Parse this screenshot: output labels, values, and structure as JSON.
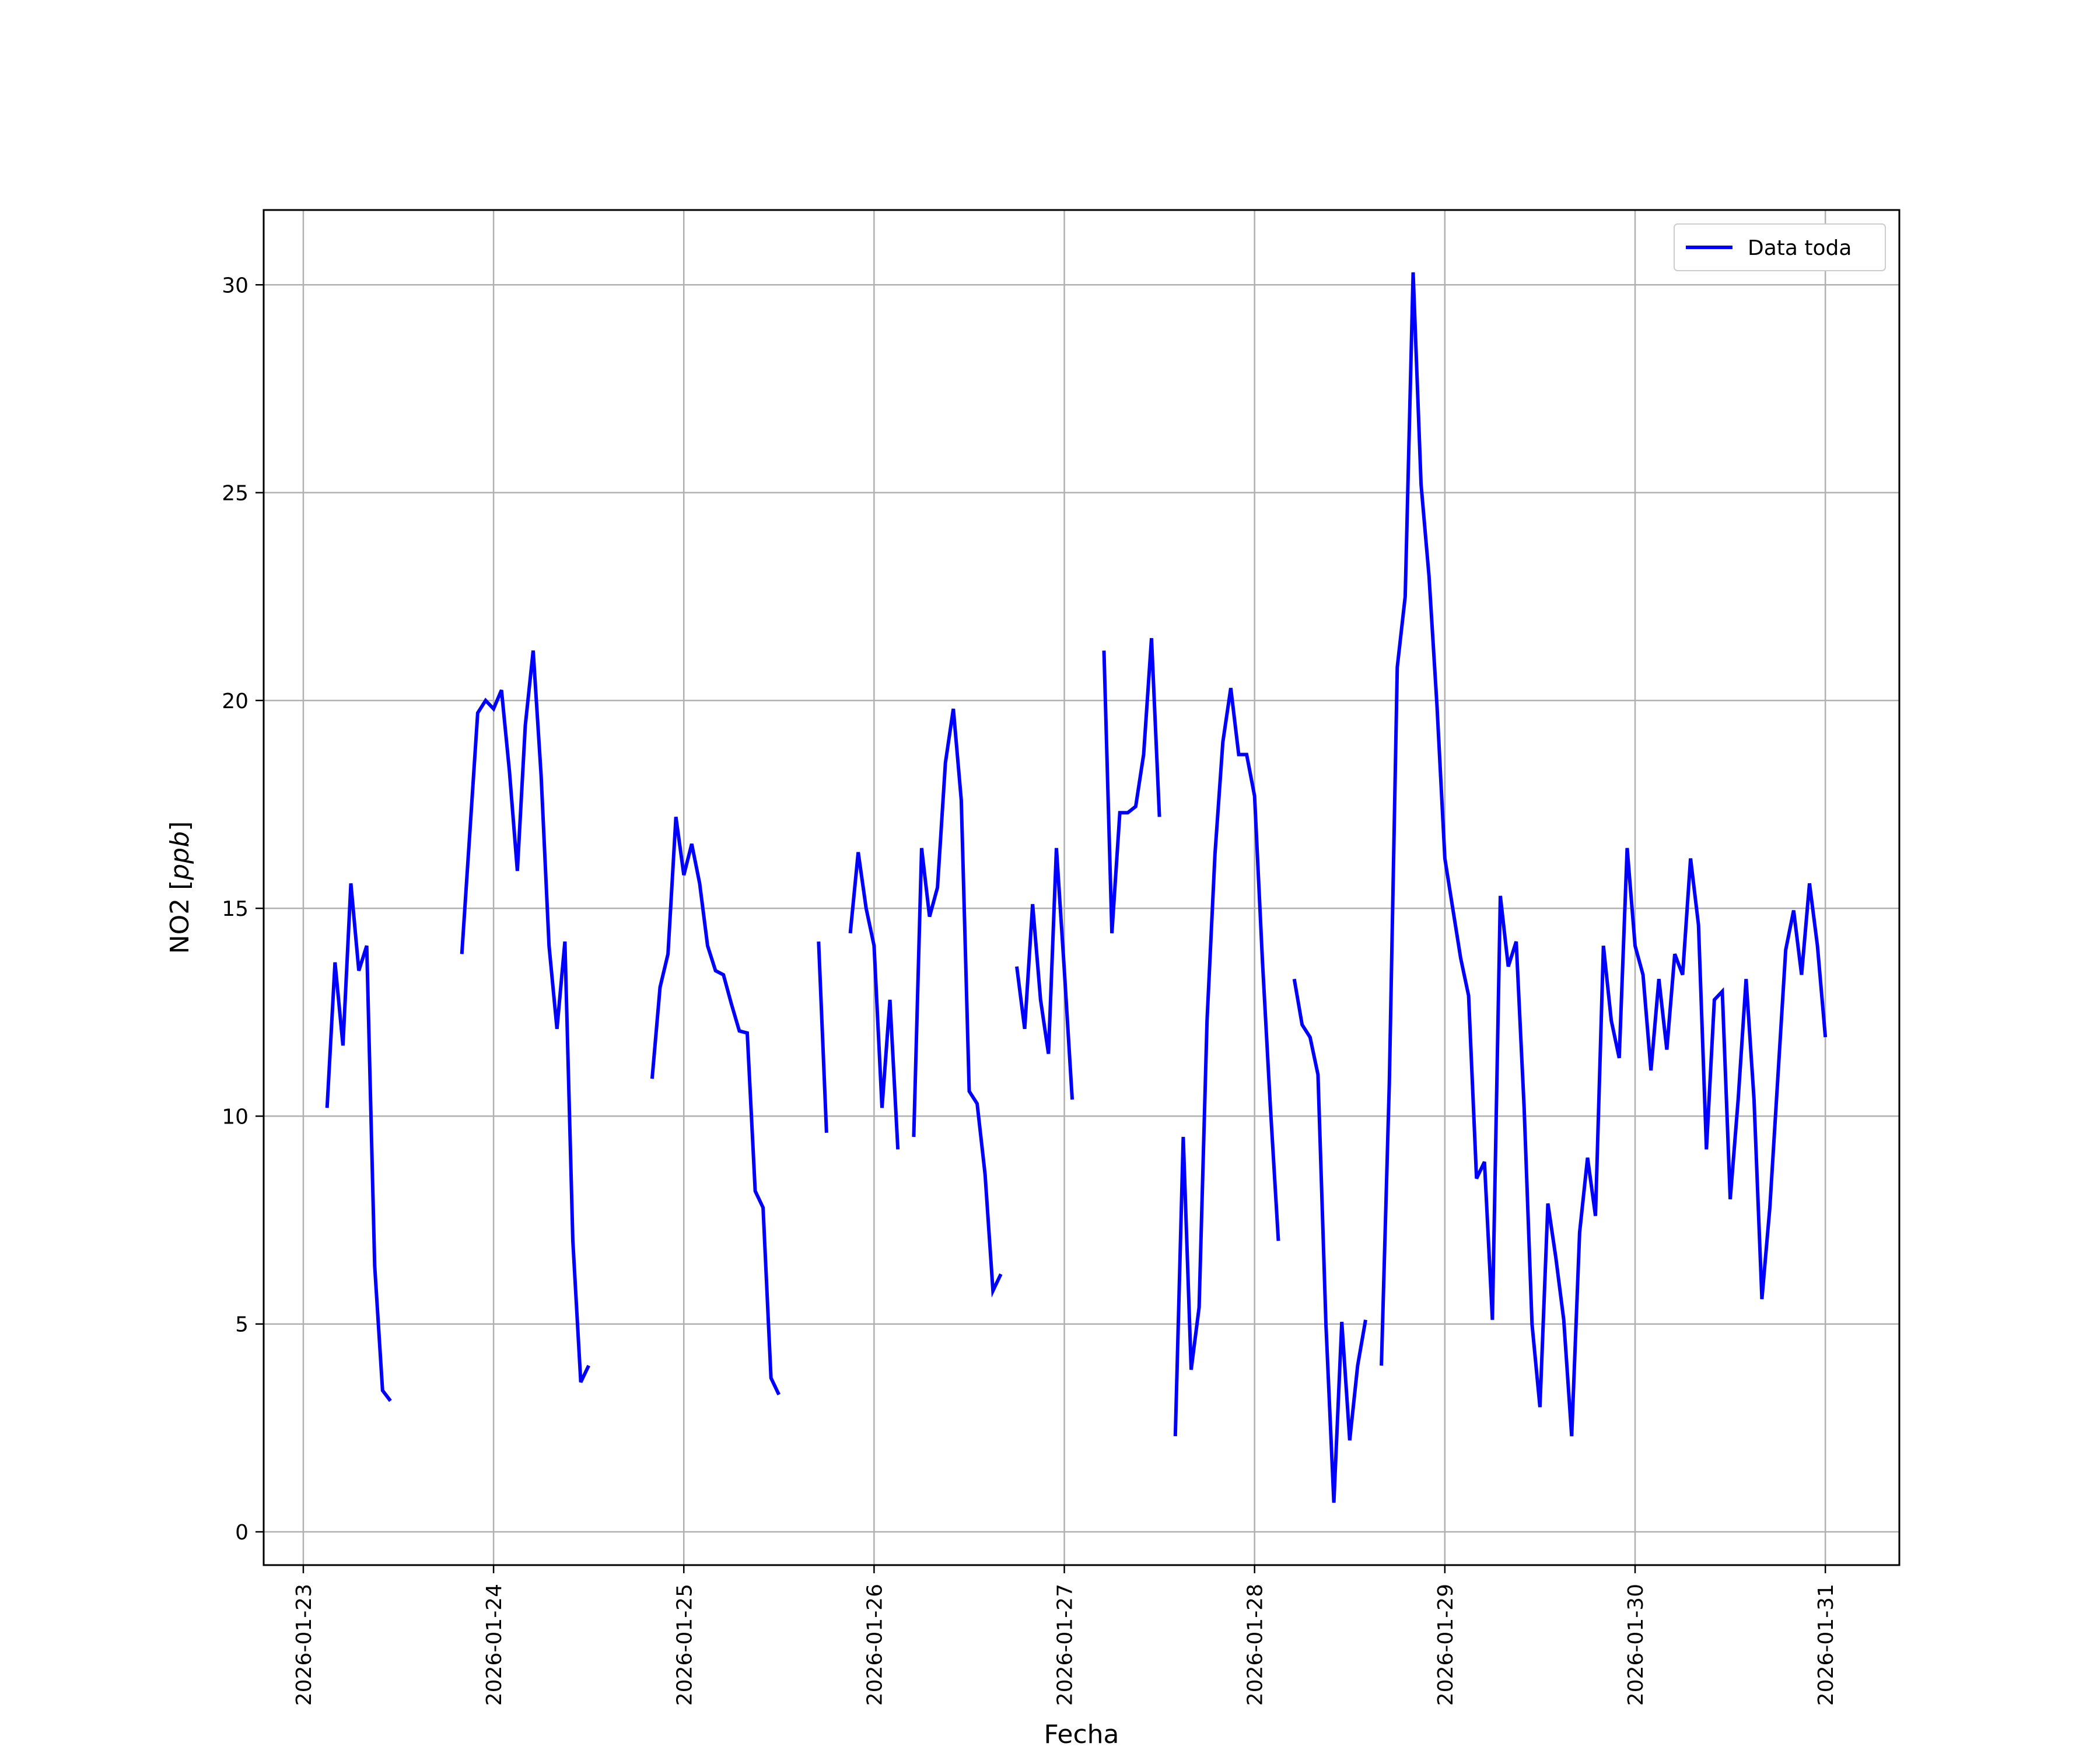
{
  "chart_data": {
    "type": "line",
    "title": "",
    "xlabel": "Fecha",
    "ylabel": "NO2 [ppb]",
    "ylabel_parts": {
      "prefix": "NO2 [",
      "unit": "ppb",
      "suffix": "]"
    },
    "x_ticks": [
      "2026-01-23",
      "2026-01-24",
      "2026-01-25",
      "2026-01-26",
      "2026-01-27",
      "2026-01-28",
      "2026-01-29",
      "2026-01-30",
      "2026-01-31"
    ],
    "y_ticks": [
      0,
      5,
      10,
      15,
      20,
      25,
      30
    ],
    "xlim": [
      "2026-01-22 19:00",
      "2026-01-31 09:20"
    ],
    "ylim": [
      -0.8,
      31.8
    ],
    "grid": true,
    "legend": {
      "placement": "top-right",
      "entries": [
        "Data toda"
      ]
    },
    "colors": {
      "series": "#0000ff",
      "grid": "#b0b0b0"
    },
    "series": [
      {
        "name": "Data toda",
        "segments": [
          [
            [
              "2026-01-23 03:00",
              10.2
            ],
            [
              "2026-01-23 04:00",
              13.7
            ],
            [
              "2026-01-23 05:00",
              11.7
            ],
            [
              "2026-01-23 06:00",
              15.6
            ],
            [
              "2026-01-23 07:00",
              13.5
            ],
            [
              "2026-01-23 08:00",
              14.1
            ],
            [
              "2026-01-23 09:00",
              6.4
            ],
            [
              "2026-01-23 10:00",
              3.4
            ],
            [
              "2026-01-23 11:00",
              3.15
            ]
          ],
          [
            [
              "2026-01-23 20:00",
              13.9
            ],
            [
              "2026-01-23 21:00",
              16.8
            ],
            [
              "2026-01-23 22:00",
              19.7
            ],
            [
              "2026-01-23 23:00",
              20.0
            ],
            [
              "2026-01-24 00:00",
              19.8
            ],
            [
              "2026-01-24 01:00",
              20.25
            ],
            [
              "2026-01-24 02:00",
              18.3
            ],
            [
              "2026-01-24 03:00",
              15.9
            ],
            [
              "2026-01-24 04:00",
              19.4
            ],
            [
              "2026-01-24 05:00",
              21.2
            ],
            [
              "2026-01-24 06:00",
              18.2
            ],
            [
              "2026-01-24 07:00",
              14.1
            ],
            [
              "2026-01-24 08:00",
              12.1
            ],
            [
              "2026-01-24 09:00",
              14.2
            ],
            [
              "2026-01-24 10:00",
              7.0
            ],
            [
              "2026-01-24 11:00",
              3.6
            ],
            [
              "2026-01-24 12:00",
              4.0
            ]
          ],
          [
            [
              "2026-01-24 20:00",
              10.9
            ],
            [
              "2026-01-24 21:00",
              13.1
            ],
            [
              "2026-01-24 22:00",
              13.9
            ],
            [
              "2026-01-24 23:00",
              17.2
            ],
            [
              "2026-01-25 00:00",
              15.8
            ],
            [
              "2026-01-25 01:00",
              16.55
            ],
            [
              "2026-01-25 02:00",
              15.6
            ],
            [
              "2026-01-25 03:00",
              14.1
            ],
            [
              "2026-01-25 04:00",
              13.5
            ],
            [
              "2026-01-25 05:00",
              13.4
            ],
            [
              "2026-01-25 06:00",
              12.7
            ],
            [
              "2026-01-25 07:00",
              12.05
            ],
            [
              "2026-01-25 08:00",
              12.0
            ],
            [
              "2026-01-25 09:00",
              8.2
            ],
            [
              "2026-01-25 10:00",
              7.8
            ],
            [
              "2026-01-25 11:00",
              3.7
            ],
            [
              "2026-01-25 12:00",
              3.3
            ]
          ],
          [
            [
              "2026-01-25 17:00",
              14.2
            ],
            [
              "2026-01-25 18:00",
              9.6
            ]
          ],
          [
            [
              "2026-01-25 21:00",
              14.4
            ],
            [
              "2026-01-25 22:00",
              16.35
            ],
            [
              "2026-01-25 23:00",
              15.0
            ],
            [
              "2026-01-26 00:00",
              14.1
            ],
            [
              "2026-01-26 01:00",
              10.2
            ],
            [
              "2026-01-26 02:00",
              12.8
            ],
            [
              "2026-01-26 03:00",
              9.2
            ]
          ],
          [
            [
              "2026-01-26 05:00",
              9.5
            ],
            [
              "2026-01-26 06:00",
              16.45
            ],
            [
              "2026-01-26 07:00",
              14.8
            ],
            [
              "2026-01-26 08:00",
              15.5
            ],
            [
              "2026-01-26 09:00",
              18.5
            ],
            [
              "2026-01-26 10:00",
              19.8
            ],
            [
              "2026-01-26 11:00",
              17.6
            ],
            [
              "2026-01-26 12:00",
              10.6
            ],
            [
              "2026-01-26 13:00",
              10.3
            ],
            [
              "2026-01-26 14:00",
              8.6
            ],
            [
              "2026-01-26 15:00",
              5.8
            ],
            [
              "2026-01-26 16:00",
              6.2
            ]
          ],
          [
            [
              "2026-01-26 18:00",
              13.6
            ],
            [
              "2026-01-26 19:00",
              12.1
            ],
            [
              "2026-01-26 20:00",
              15.1
            ],
            [
              "2026-01-26 21:00",
              12.8
            ],
            [
              "2026-01-26 22:00",
              11.5
            ],
            [
              "2026-01-26 23:00",
              16.45
            ],
            [
              "2026-01-27 00:00",
              13.5
            ],
            [
              "2026-01-27 01:00",
              10.4
            ]
          ],
          [
            [
              "2026-01-27 05:00",
              21.2
            ],
            [
              "2026-01-27 06:00",
              14.4
            ],
            [
              "2026-01-27 07:00",
              17.3
            ],
            [
              "2026-01-27 08:00",
              17.3
            ],
            [
              "2026-01-27 09:00",
              17.45
            ],
            [
              "2026-01-27 10:00",
              18.7
            ],
            [
              "2026-01-27 11:00",
              21.5
            ],
            [
              "2026-01-27 12:00",
              17.2
            ]
          ],
          [
            [
              "2026-01-27 14:00",
              2.3
            ],
            [
              "2026-01-27 15:00",
              9.5
            ],
            [
              "2026-01-27 16:00",
              3.9
            ],
            [
              "2026-01-27 17:00",
              5.4
            ],
            [
              "2026-01-27 18:00",
              12.3
            ],
            [
              "2026-01-27 19:00",
              16.3
            ],
            [
              "2026-01-27 20:00",
              19.0
            ],
            [
              "2026-01-27 21:00",
              20.3
            ],
            [
              "2026-01-27 22:00",
              18.7
            ],
            [
              "2026-01-27 23:00",
              18.7
            ],
            [
              "2026-01-28 00:00",
              17.7
            ],
            [
              "2026-01-28 01:00",
              13.7
            ],
            [
              "2026-01-28 02:00",
              10.2
            ],
            [
              "2026-01-28 03:00",
              7.0
            ]
          ],
          [
            [
              "2026-01-28 05:00",
              13.3
            ],
            [
              "2026-01-28 06:00",
              12.2
            ],
            [
              "2026-01-28 07:00",
              11.9
            ],
            [
              "2026-01-28 08:00",
              11.0
            ],
            [
              "2026-01-28 09:00",
              5.0
            ],
            [
              "2026-01-28 10:00",
              0.7
            ],
            [
              "2026-01-28 11:00",
              5.05
            ],
            [
              "2026-01-28 12:00",
              2.2
            ],
            [
              "2026-01-28 13:00",
              4.0
            ],
            [
              "2026-01-28 14:00",
              5.1
            ]
          ],
          [
            [
              "2026-01-28 16:00",
              4.0
            ],
            [
              "2026-01-28 17:00",
              10.8
            ],
            [
              "2026-01-28 18:00",
              20.8
            ],
            [
              "2026-01-28 19:00",
              22.5
            ],
            [
              "2026-01-28 20:00",
              30.3
            ],
            [
              "2026-01-28 21:00",
              25.2
            ],
            [
              "2026-01-28 22:00",
              23.0
            ],
            [
              "2026-01-28 23:00",
              19.9
            ],
            [
              "2026-01-29 00:00",
              16.2
            ],
            [
              "2026-01-29 01:00",
              15.0
            ],
            [
              "2026-01-29 02:00",
              13.8
            ],
            [
              "2026-01-29 03:00",
              12.9
            ],
            [
              "2026-01-29 04:00",
              8.5
            ],
            [
              "2026-01-29 05:00",
              8.9
            ],
            [
              "2026-01-29 06:00",
              5.1
            ],
            [
              "2026-01-29 07:00",
              15.3
            ],
            [
              "2026-01-29 08:00",
              13.6
            ],
            [
              "2026-01-29 09:00",
              14.2
            ],
            [
              "2026-01-29 10:00",
              10.2
            ],
            [
              "2026-01-29 11:00",
              5.0
            ],
            [
              "2026-01-29 12:00",
              3.0
            ],
            [
              "2026-01-29 13:00",
              7.9
            ],
            [
              "2026-01-29 14:00",
              6.6
            ],
            [
              "2026-01-29 15:00",
              5.1
            ],
            [
              "2026-01-29 16:00",
              2.3
            ],
            [
              "2026-01-29 17:00",
              7.2
            ],
            [
              "2026-01-29 18:00",
              9.0
            ],
            [
              "2026-01-29 19:00",
              7.6
            ],
            [
              "2026-01-29 20:00",
              14.1
            ],
            [
              "2026-01-29 21:00",
              12.3
            ],
            [
              "2026-01-29 22:00",
              11.4
            ],
            [
              "2026-01-29 23:00",
              16.45
            ],
            [
              "2026-01-30 00:00",
              14.1
            ],
            [
              "2026-01-30 01:00",
              13.4
            ],
            [
              "2026-01-30 02:00",
              11.1
            ],
            [
              "2026-01-30 03:00",
              13.3
            ],
            [
              "2026-01-30 04:00",
              11.6
            ],
            [
              "2026-01-30 05:00",
              13.9
            ],
            [
              "2026-01-30 06:00",
              13.4
            ],
            [
              "2026-01-30 07:00",
              16.2
            ],
            [
              "2026-01-30 08:00",
              14.6
            ],
            [
              "2026-01-30 09:00",
              9.2
            ],
            [
              "2026-01-30 10:00",
              12.8
            ],
            [
              "2026-01-30 11:00",
              13.0
            ],
            [
              "2026-01-30 12:00",
              8.0
            ],
            [
              "2026-01-30 13:00",
              10.4
            ],
            [
              "2026-01-30 14:00",
              13.3
            ],
            [
              "2026-01-30 15:00",
              10.4
            ],
            [
              "2026-01-30 16:00",
              5.6
            ],
            [
              "2026-01-30 17:00",
              7.8
            ],
            [
              "2026-01-30 18:00",
              10.9
            ],
            [
              "2026-01-30 19:00",
              14.0
            ],
            [
              "2026-01-30 20:00",
              14.95
            ],
            [
              "2026-01-30 21:00",
              13.4
            ],
            [
              "2026-01-30 22:00",
              15.6
            ],
            [
              "2026-01-30 23:00",
              14.1
            ],
            [
              "2026-01-31 00:00",
              11.9
            ]
          ]
        ]
      }
    ]
  }
}
